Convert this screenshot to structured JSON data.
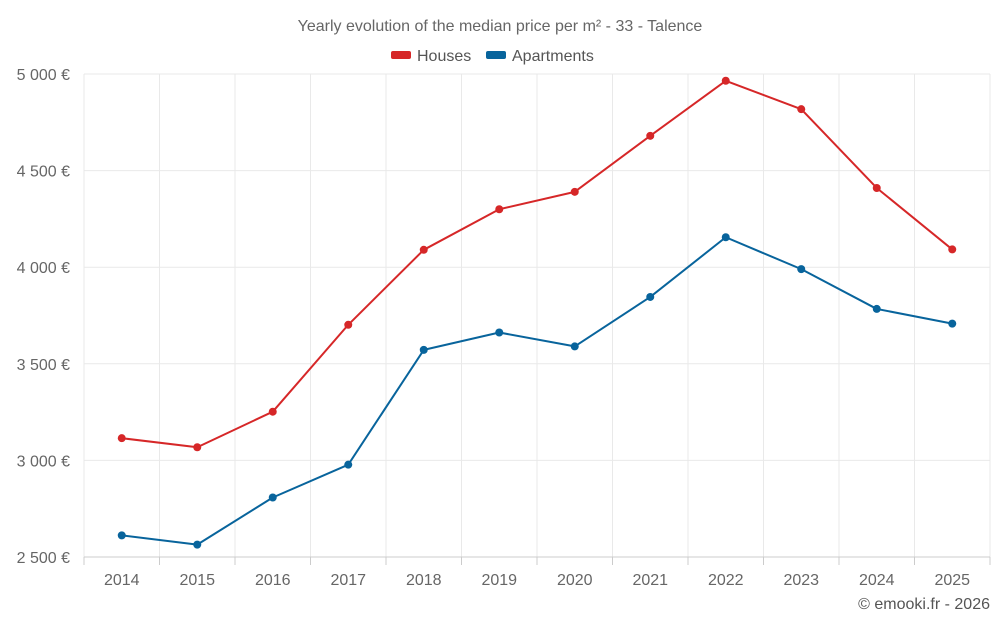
{
  "chart_data": {
    "type": "line",
    "title": "Yearly evolution of the median price per m² - 33 - Talence",
    "categories": [
      "2014",
      "2015",
      "2016",
      "2017",
      "2018",
      "2019",
      "2020",
      "2021",
      "2022",
      "2023",
      "2024",
      "2025"
    ],
    "series": [
      {
        "name": "Houses",
        "color": "#d62728",
        "values": [
          3115,
          3068,
          3252,
          3702,
          4090,
          4300,
          4390,
          4680,
          4965,
          4818,
          4410,
          4092
        ]
      },
      {
        "name": "Apartments",
        "color": "#08649c",
        "values": [
          2612,
          2564,
          2808,
          2978,
          3572,
          3662,
          3590,
          3846,
          4155,
          3990,
          3784,
          3708
        ]
      }
    ],
    "ylim": [
      2500,
      5000
    ],
    "yticks": [
      2500,
      3000,
      3500,
      4000,
      4500,
      5000
    ],
    "ytick_labels": [
      "2 500 €",
      "3 000 €",
      "3 500 €",
      "4 000 €",
      "4 500 €",
      "5 000 €"
    ],
    "xlabel": "",
    "ylabel": "",
    "grid": true,
    "legend_position": "top-center"
  },
  "credit": "© emooki.fr - 2026"
}
